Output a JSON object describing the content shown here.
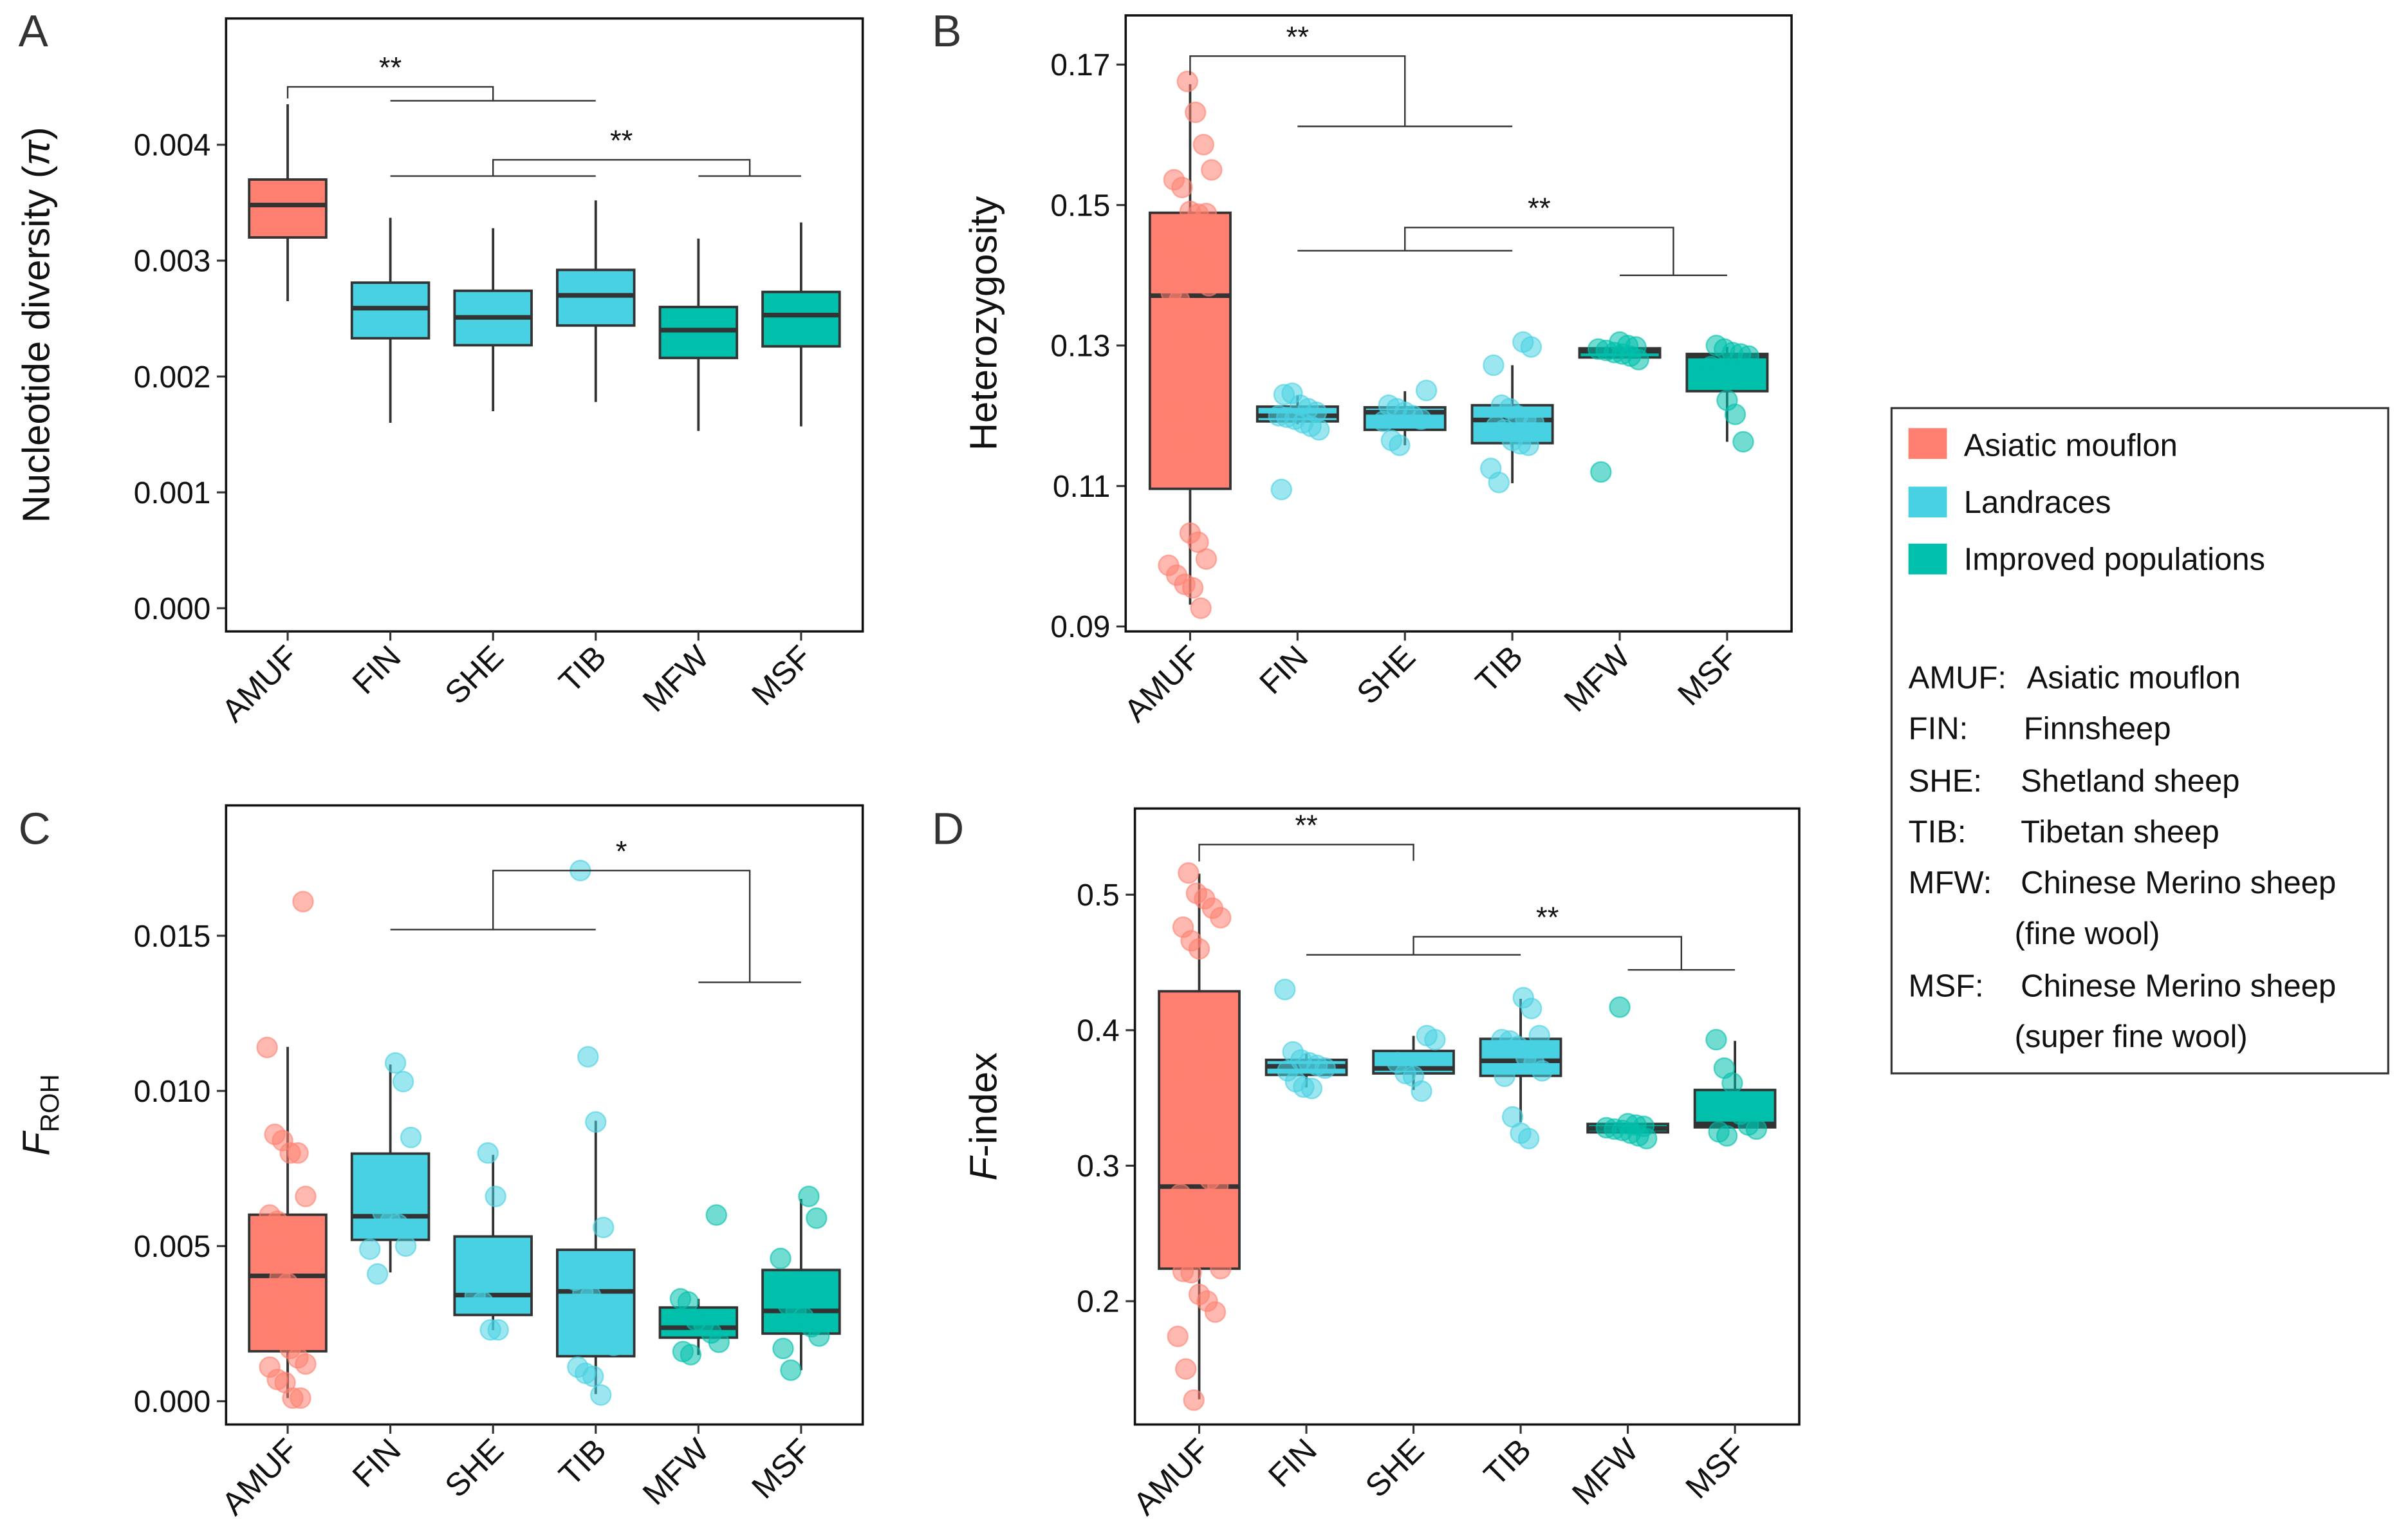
{
  "colors": {
    "AMUF": "#FF8070",
    "landrace": "#48D1E2",
    "improved": "#00BFAB",
    "box_line": "#333333"
  },
  "legend": {
    "items": [
      {
        "label": "Asiatic mouflon",
        "color": "#FF8070"
      },
      {
        "label": "Landraces",
        "color": "#48D1E2"
      },
      {
        "label": "Improved populations",
        "color": "#00BFAB"
      }
    ],
    "abbreviations": [
      {
        "code": "AMUF:",
        "name": "Asiatic mouflon"
      },
      {
        "code": "FIN:",
        "name": "Finnsheep"
      },
      {
        "code": "SHE:",
        "name": "Shetland sheep"
      },
      {
        "code": "TIB:",
        "name": "Tibetan sheep"
      },
      {
        "code": "MFW:",
        "name": "Chinese Merino sheep"
      },
      {
        "code": "",
        "name": "(fine wool)"
      },
      {
        "code": "MSF:",
        "name": "Chinese Merino sheep"
      },
      {
        "code": "",
        "name": "(super fine wool)"
      }
    ]
  },
  "chart_data": [
    {
      "panel": "A",
      "type": "box",
      "categories": [
        "AMUF",
        "FIN",
        "SHE",
        "TIB",
        "MFW",
        "MSF"
      ],
      "groups": [
        "AMUF",
        "landrace",
        "landrace",
        "landrace",
        "improved",
        "improved"
      ],
      "ylabel_parts": [
        {
          "text": "Nucleotide diversity (",
          "style": "normal"
        },
        {
          "text": "π",
          "style": "italic"
        },
        {
          "text": ")",
          "style": "normal"
        }
      ],
      "ylim": [
        -0.0002,
        0.00509
      ],
      "yticks": [
        0,
        0.001,
        0.002,
        0.003,
        0.004
      ],
      "ytick_labels": [
        "0.000",
        "0.001",
        "0.002",
        "0.003",
        "0.004"
      ],
      "boxes": [
        {
          "min": 0.00265,
          "q1": 0.0032,
          "median": 0.00348,
          "q3": 0.0037,
          "max": 0.00435
        },
        {
          "min": 0.0016,
          "q1": 0.00233,
          "median": 0.00259,
          "q3": 0.00281,
          "max": 0.00337
        },
        {
          "min": 0.0017,
          "q1": 0.00227,
          "median": 0.00251,
          "q3": 0.00274,
          "max": 0.00328
        },
        {
          "min": 0.00178,
          "q1": 0.00244,
          "median": 0.0027,
          "q3": 0.00292,
          "max": 0.00352
        },
        {
          "min": 0.00153,
          "q1": 0.00216,
          "median": 0.0024,
          "q3": 0.0026,
          "max": 0.00319
        },
        {
          "min": 0.00157,
          "q1": 0.00226,
          "median": 0.00253,
          "q3": 0.00273,
          "max": 0.00333
        }
      ],
      "points": [],
      "significance": [
        {
          "label": "**",
          "left": [
            0,
            0
          ],
          "right": [
            1,
            3
          ],
          "y_left": 0.0044,
          "y_right": 0.00438,
          "y_top": 0.0045
        },
        {
          "label": "**",
          "left": [
            1,
            3
          ],
          "right": [
            4,
            5
          ],
          "y_left": 0.00373,
          "y_right": 0.00373,
          "y_top": 0.00387
        }
      ]
    },
    {
      "panel": "B",
      "type": "box",
      "categories": [
        "AMUF",
        "FIN",
        "SHE",
        "TIB",
        "MFW",
        "MSF"
      ],
      "groups": [
        "AMUF",
        "landrace",
        "landrace",
        "landrace",
        "improved",
        "improved"
      ],
      "ylabel_parts": [
        {
          "text": "Heterozygosity",
          "style": "normal"
        }
      ],
      "ylim": [
        0.0893,
        0.177
      ],
      "yticks": [
        0.09,
        0.11,
        0.13,
        0.15,
        0.17
      ],
      "ytick_labels": [
        "0.09",
        "0.11",
        "0.13",
        "0.15",
        "0.17"
      ],
      "boxes": [
        {
          "min": 0.0931,
          "q1": 0.1096,
          "median": 0.1371,
          "q3": 0.1489,
          "max": 0.1672
        },
        {
          "min": 0.1188,
          "q1": 0.1192,
          "median": 0.12,
          "q3": 0.1213,
          "max": 0.1229
        },
        {
          "min": 0.1158,
          "q1": 0.118,
          "median": 0.1205,
          "q3": 0.1212,
          "max": 0.1235
        },
        {
          "min": 0.1104,
          "q1": 0.1161,
          "median": 0.1194,
          "q3": 0.1215,
          "max": 0.1272
        },
        {
          "min": 0.1283,
          "q1": 0.1283,
          "median": 0.1292,
          "q3": 0.1296,
          "max": 0.1301
        },
        {
          "min": 0.1163,
          "q1": 0.1235,
          "median": 0.1285,
          "q3": 0.1288,
          "max": 0.1298
        }
      ],
      "points": [
        [
          0.1676,
          0.1632,
          0.1586,
          0.155,
          0.1536,
          0.1525,
          0.1491,
          0.1487,
          0.1488,
          0.1446,
          0.144,
          0.1432,
          0.1426,
          0.141,
          0.1385,
          0.1375,
          0.1365,
          0.131,
          0.1305,
          0.1303,
          0.1203,
          0.1205,
          0.116,
          0.1033,
          0.102,
          0.0996,
          0.0987,
          0.0973,
          0.096,
          0.0955,
          0.0926
        ],
        [
          0.123,
          0.1232,
          0.1215,
          0.121,
          0.1205,
          0.12,
          0.1198,
          0.1195,
          0.119,
          0.1185,
          0.118,
          0.1095
        ],
        [
          0.1236,
          0.1215,
          0.121,
          0.1205,
          0.12,
          0.1195,
          0.1192,
          0.1165,
          0.1158
        ],
        [
          0.1305,
          0.1298,
          0.1272,
          0.1215,
          0.121,
          0.12,
          0.1195,
          0.119,
          0.1185,
          0.118,
          0.1165,
          0.116,
          0.1158,
          0.1125,
          0.1105
        ],
        [
          0.1305,
          0.13,
          0.1298,
          0.1295,
          0.1293,
          0.129,
          0.1288,
          0.1285,
          0.128,
          0.112
        ],
        [
          0.13,
          0.1295,
          0.129,
          0.1288,
          0.1285,
          0.127,
          0.1265,
          0.1222,
          0.1202,
          0.1163
        ]
      ],
      "significance": [
        {
          "label": "**",
          "left": [
            0,
            0
          ],
          "right": [
            1,
            3
          ],
          "y_left": 0.1685,
          "y_right": 0.1612,
          "y_top": 0.1712
        },
        {
          "label": "**",
          "left": [
            1,
            3
          ],
          "right": [
            4,
            5
          ],
          "y_left": 0.1435,
          "y_right": 0.14,
          "y_top": 0.1468
        }
      ]
    },
    {
      "panel": "C",
      "type": "box",
      "categories": [
        "AMUF",
        "FIN",
        "SHE",
        "TIB",
        "MFW",
        "MSF"
      ],
      "groups": [
        "AMUF",
        "landrace",
        "landrace",
        "landrace",
        "improved",
        "improved"
      ],
      "ylabel_parts": [
        {
          "text": "F",
          "style": "italic"
        },
        {
          "text": "ROH",
          "style": "sub"
        }
      ],
      "ylim": [
        -0.00075,
        0.0192
      ],
      "yticks": [
        0,
        0.005,
        0.01,
        0.015
      ],
      "ytick_labels": [
        "0.000",
        "0.005",
        "0.010",
        "0.015"
      ],
      "boxes": [
        {
          "min": 0.0001,
          "q1": 0.00161,
          "median": 0.00404,
          "q3": 0.00601,
          "max": 0.01142
        },
        {
          "min": 0.00415,
          "q1": 0.0052,
          "median": 0.00596,
          "q3": 0.00798,
          "max": 0.01085
        },
        {
          "min": 0.00229,
          "q1": 0.00278,
          "median": 0.00342,
          "q3": 0.00531,
          "max": 0.00794
        },
        {
          "min": 0.00023,
          "q1": 0.00145,
          "median": 0.00354,
          "q3": 0.00488,
          "max": 0.00904
        },
        {
          "min": 0.00149,
          "q1": 0.00205,
          "median": 0.00237,
          "q3": 0.00302,
          "max": 0.0033
        },
        {
          "min": 0.001,
          "q1": 0.00218,
          "median": 0.00291,
          "q3": 0.00423,
          "max": 0.00652
        }
      ],
      "points": [
        [
          0.0161,
          0.0114,
          0.0086,
          0.0084,
          0.008,
          0.008,
          0.0066,
          0.006,
          0.0058,
          0.0056,
          0.0055,
          0.005,
          0.005,
          0.0048,
          0.004,
          0.0038,
          0.0034,
          0.003,
          0.0029,
          0.0027,
          0.0022,
          0.0017,
          0.0014,
          0.0012,
          0.0011,
          0.0007,
          0.0006,
          0.0001,
          0.0001
        ],
        [
          0.0109,
          0.0103,
          0.0085,
          0.0066,
          0.0061,
          0.0058,
          0.0057,
          0.005,
          0.0049,
          0.0041
        ],
        [
          0.008,
          0.0066,
          0.0041,
          0.004,
          0.0034,
          0.0032,
          0.0023,
          0.0023
        ],
        [
          0.0171,
          0.0111,
          0.009,
          0.0056,
          0.004,
          0.0039,
          0.0035,
          0.0034,
          0.0026,
          0.002,
          0.0018,
          0.0011,
          0.0009,
          0.0008,
          0.0002
        ],
        [
          0.006,
          0.0033,
          0.0032,
          0.0026,
          0.0025,
          0.0022,
          0.0019,
          0.0016,
          0.0015
        ],
        [
          0.0066,
          0.0059,
          0.0046,
          0.0031,
          0.0029,
          0.0027,
          0.0024,
          0.0021,
          0.0017,
          0.001
        ]
      ],
      "significance": [
        {
          "label": "*",
          "left": [
            1,
            3
          ],
          "right": [
            4,
            5
          ],
          "y_left": 0.0152,
          "y_right": 0.0135,
          "y_top": 0.0171
        }
      ]
    },
    {
      "panel": "D",
      "type": "box",
      "categories": [
        "AMUF",
        "FIN",
        "SHE",
        "TIB",
        "MFW",
        "MSF"
      ],
      "groups": [
        "AMUF",
        "landrace",
        "landrace",
        "landrace",
        "improved",
        "improved"
      ],
      "ylabel_parts": [
        {
          "text": "F",
          "style": "italic"
        },
        {
          "text": "-index",
          "style": "normal"
        }
      ],
      "ylim": [
        0.109,
        0.5636
      ],
      "yticks": [
        0.2,
        0.3,
        0.4,
        0.5
      ],
      "ytick_labels": [
        "0.2",
        "0.3",
        "0.4",
        "0.5"
      ],
      "boxes": [
        {
          "min": 0.1276,
          "q1": 0.224,
          "median": 0.2846,
          "q3": 0.4287,
          "max": 0.5155
        },
        {
          "min": 0.3578,
          "q1": 0.367,
          "median": 0.3733,
          "q3": 0.3781,
          "max": 0.3825
        },
        {
          "min": 0.356,
          "q1": 0.3681,
          "median": 0.3718,
          "q3": 0.3847,
          "max": 0.3958
        },
        {
          "min": 0.332,
          "q1": 0.3663,
          "median": 0.3774,
          "q3": 0.3936,
          "max": 0.4232
        },
        {
          "min": 0.3238,
          "q1": 0.3246,
          "median": 0.3275,
          "q3": 0.3308,
          "max": 0.3308
        },
        {
          "min": 0.3283,
          "q1": 0.3283,
          "median": 0.3308,
          "q3": 0.3559,
          "max": 0.3921
        }
      ],
      "points": [
        [
          0.516,
          0.501,
          0.497,
          0.49,
          0.483,
          0.476,
          0.466,
          0.46,
          0.395,
          0.37,
          0.37,
          0.321,
          0.32,
          0.317,
          0.29,
          0.285,
          0.279,
          0.265,
          0.255,
          0.249,
          0.245,
          0.224,
          0.222,
          0.221,
          0.205,
          0.2,
          0.192,
          0.174,
          0.15,
          0.127
        ],
        [
          0.43,
          0.384,
          0.378,
          0.376,
          0.374,
          0.372,
          0.37,
          0.362,
          0.358,
          0.357
        ],
        [
          0.396,
          0.393,
          0.376,
          0.368,
          0.366,
          0.355
        ],
        [
          0.424,
          0.416,
          0.396,
          0.393,
          0.392,
          0.388,
          0.38,
          0.376,
          0.37,
          0.366,
          0.336,
          0.324,
          0.32
        ],
        [
          0.417,
          0.331,
          0.33,
          0.329,
          0.328,
          0.327,
          0.326,
          0.324,
          0.322,
          0.32
        ],
        [
          0.393,
          0.372,
          0.361,
          0.338,
          0.33,
          0.327,
          0.325,
          0.322
        ]
      ],
      "significance": [
        {
          "label": "**",
          "left": [
            0,
            0
          ],
          "right": [
            2,
            2
          ],
          "y_left": 0.5245,
          "y_right": 0.525,
          "y_top": 0.537
        },
        {
          "label": "**",
          "left": [
            1,
            3
          ],
          "right": [
            4,
            5
          ],
          "y_left": 0.4556,
          "y_right": 0.4445,
          "y_top": 0.469
        }
      ]
    }
  ]
}
